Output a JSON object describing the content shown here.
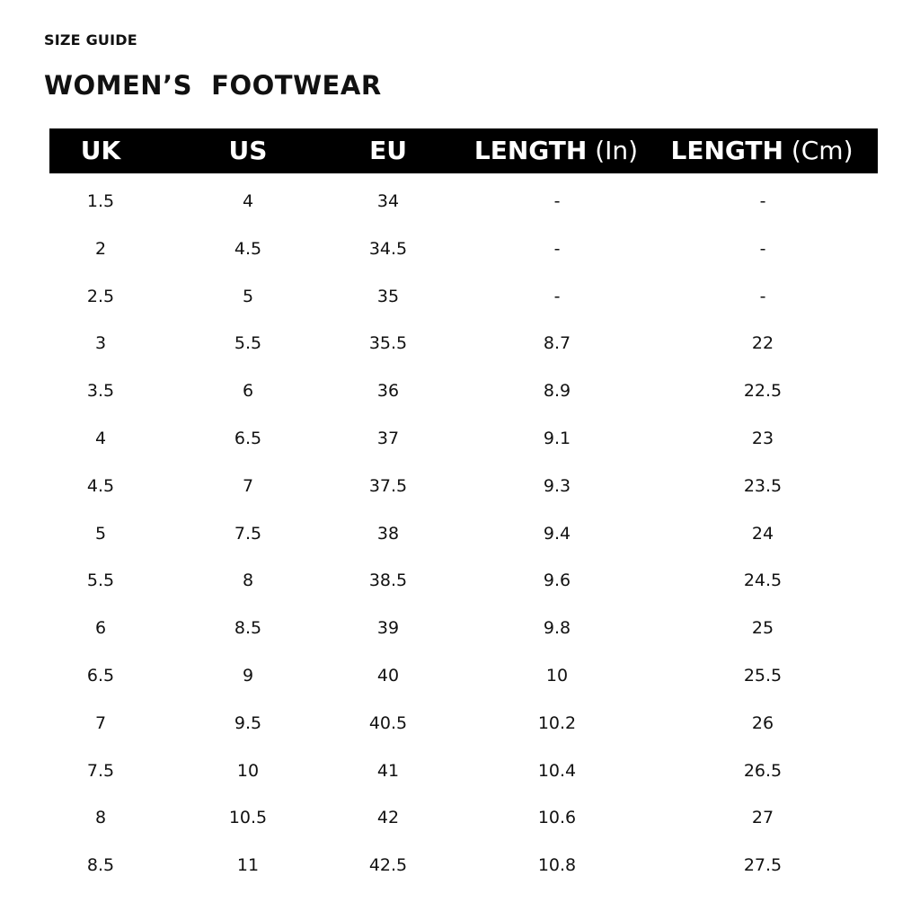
{
  "kicker": "SIZE GUIDE",
  "title": "WOMEN’S  FOOTWEAR",
  "header_bg": "#000000",
  "columns": [
    {
      "label": "UK",
      "unit": ""
    },
    {
      "label": "US",
      "unit": ""
    },
    {
      "label": "EU",
      "unit": ""
    },
    {
      "label": "LENGTH",
      "unit": "(In)"
    },
    {
      "label": "LENGTH",
      "unit": "(Cm)"
    }
  ],
  "rows": [
    [
      "1.5",
      "4",
      "34",
      "-",
      "-"
    ],
    [
      "2",
      "4.5",
      "34.5",
      "-",
      "-"
    ],
    [
      "2.5",
      "5",
      "35",
      "-",
      "-"
    ],
    [
      "3",
      "5.5",
      "35.5",
      "8.7",
      "22"
    ],
    [
      "3.5",
      "6",
      "36",
      "8.9",
      "22.5"
    ],
    [
      "4",
      "6.5",
      "37",
      "9.1",
      "23"
    ],
    [
      "4.5",
      "7",
      "37.5",
      "9.3",
      "23.5"
    ],
    [
      "5",
      "7.5",
      "38",
      "9.4",
      "24"
    ],
    [
      "5.5",
      "8",
      "38.5",
      "9.6",
      "24.5"
    ],
    [
      "6",
      "8.5",
      "39",
      "9.8",
      "25"
    ],
    [
      "6.5",
      "9",
      "40",
      "10",
      "25.5"
    ],
    [
      "7",
      "9.5",
      "40.5",
      "10.2",
      "26"
    ],
    [
      "7.5",
      "10",
      "41",
      "10.4",
      "26.5"
    ],
    [
      "8",
      "10.5",
      "42",
      "10.6",
      "27"
    ],
    [
      "8.5",
      "11",
      "42.5",
      "10.8",
      "27.5"
    ]
  ]
}
